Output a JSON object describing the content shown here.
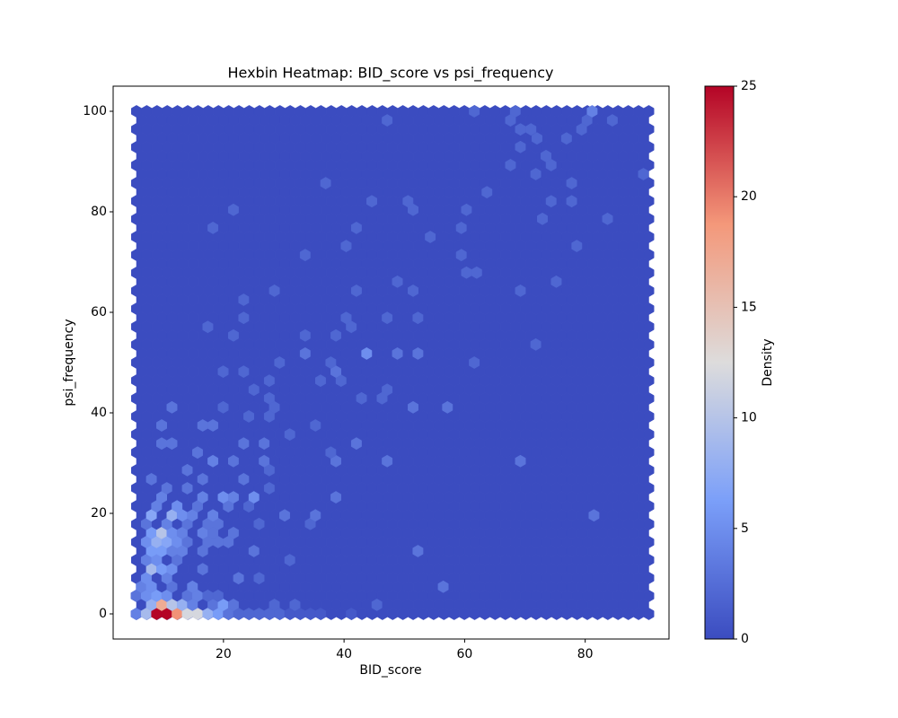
{
  "chart_data": {
    "type": "hexbin",
    "title": "Hexbin Heatmap: BID_score vs psi_frequency",
    "x_label": "BID_score",
    "y_label": "psi_frequency",
    "colorbar_label": "Density",
    "xlim": [
      1.7,
      93.9
    ],
    "ylim": [
      -5,
      105
    ],
    "xticks": [
      20,
      40,
      60,
      80
    ],
    "yticks": [
      0,
      20,
      40,
      60,
      80,
      100
    ],
    "clim": [
      0,
      25
    ],
    "cticks": [
      0,
      5,
      10,
      15,
      20,
      25
    ],
    "colormap": [
      "#3b4cc0",
      "#7b9ff9",
      "#dddcdc",
      "#f4987a",
      "#b40426"
    ],
    "x": [
      5.5,
      7.2,
      8.9,
      10.6,
      12.3,
      14.0,
      15.7,
      17.4,
      19.1,
      20.8,
      22.5,
      24.2,
      25.9,
      27.6,
      29.3,
      31.0,
      32.7,
      34.4,
      36.1,
      41.2,
      8.05,
      9.75,
      11.45,
      13.15,
      14.85,
      18.25,
      19.95,
      21.65,
      28.45,
      31.85,
      45.45,
      5.5,
      7.2,
      8.9,
      10.6,
      14.0,
      15.7,
      17.4,
      19.1,
      6.35,
      8.05,
      11.45,
      14.85,
      56.45,
      7.2,
      10.6,
      22.5,
      25.9,
      8.05,
      9.75,
      11.45,
      16.55,
      7.2,
      8.9,
      12.3,
      31.0,
      8.05,
      9.75,
      11.45,
      13.15,
      16.55,
      25.05,
      52.25,
      7.2,
      8.9,
      10.6,
      12.3,
      14.0,
      17.4,
      19.1,
      20.8,
      8.05,
      9.75,
      11.45,
      13.15,
      16.55,
      18.25,
      21.65,
      7.2,
      10.6,
      14.0,
      17.4,
      19.1,
      25.9,
      34.4,
      8.05,
      11.45,
      13.15,
      14.85,
      18.25,
      30.15,
      35.25,
      81.45,
      8.9,
      12.3,
      15.7,
      20.8,
      24.2,
      9.75,
      16.55,
      19.95,
      21.65,
      25.05,
      38.65,
      10.6,
      14.0,
      27.6,
      8.05,
      16.55,
      23.35,
      14.0,
      27.6,
      18.25,
      21.65,
      26.75,
      38.65,
      47.15,
      69.25,
      15.7,
      37.8,
      9.75,
      11.45,
      23.35,
      26.75,
      42.05,
      31.0,
      9.75,
      16.55,
      18.25,
      35.25,
      24.2,
      27.6,
      11.45,
      19.95,
      28.45,
      51.45,
      57.15,
      27.6,
      42.9,
      46.3,
      25.05,
      47.15,
      36.1,
      39.5,
      27.6,
      19.95,
      23.35,
      38.65,
      29.3,
      37.8,
      61.6,
      33.55,
      43.75,
      48.85,
      52.25,
      71.8,
      21.65,
      33.55,
      38.65,
      17.4,
      41.2,
      23.35,
      40.35,
      47.15,
      52.25,
      23.35,
      28.45,
      42.05,
      51.45,
      48.85,
      69.25,
      75.2,
      60.3,
      62.0,
      59.45,
      33.55,
      40.35,
      78.6,
      54.3,
      59.45,
      42.05,
      18.25,
      83.7,
      72.9,
      21.65,
      60.3,
      51.45,
      44.6,
      50.6,
      74.35,
      77.75,
      63.7,
      77.75,
      36.95,
      71.8,
      89.65,
      74.35,
      67.6,
      69.25,
      73.5,
      76.9,
      72.0,
      79.4,
      80.3,
      81.15,
      84.5,
      68.4,
      61.6,
      67.6,
      47.15,
      69.25,
      71.0
    ],
    "y": [
      0,
      0,
      0,
      0,
      0,
      0,
      0,
      0,
      0,
      0,
      0,
      0,
      0,
      0,
      0,
      0,
      0,
      0,
      0,
      0,
      1.8,
      1.8,
      1.8,
      1.8,
      1.8,
      1.8,
      1.8,
      1.8,
      1.8,
      1.8,
      1.8,
      3.6,
      3.6,
      3.6,
      3.6,
      3.6,
      3.6,
      3.6,
      3.6,
      5.4,
      5.4,
      5.4,
      5.4,
      5.4,
      7.1,
      7.1,
      7.1,
      7.1,
      8.9,
      8.9,
      8.9,
      8.9,
      10.7,
      10.7,
      10.7,
      10.7,
      12.5,
      12.5,
      12.5,
      12.5,
      12.5,
      12.5,
      12.5,
      14.3,
      14.3,
      14.3,
      14.3,
      14.3,
      14.3,
      14.3,
      14.3,
      16.1,
      16.1,
      16.1,
      16.1,
      16.1,
      16.1,
      16.1,
      17.9,
      17.9,
      17.9,
      17.9,
      17.9,
      17.9,
      17.9,
      19.6,
      19.6,
      19.6,
      19.6,
      19.6,
      19.6,
      19.6,
      19.6,
      21.4,
      21.4,
      21.4,
      21.4,
      21.4,
      23.2,
      23.2,
      23.2,
      23.2,
      23.2,
      23.2,
      25.0,
      25.0,
      25.0,
      26.8,
      26.8,
      26.8,
      28.6,
      28.6,
      30.4,
      30.4,
      30.4,
      30.4,
      30.4,
      30.4,
      32.1,
      32.1,
      33.9,
      33.9,
      33.9,
      33.9,
      33.9,
      35.7,
      37.5,
      37.5,
      37.5,
      37.5,
      39.3,
      39.3,
      41.1,
      41.1,
      41.1,
      41.1,
      41.1,
      42.9,
      42.9,
      42.9,
      44.6,
      44.6,
      46.4,
      46.4,
      46.4,
      48.2,
      48.2,
      48.2,
      50.0,
      50.0,
      50.0,
      51.8,
      51.8,
      51.8,
      51.8,
      53.6,
      55.4,
      55.4,
      55.4,
      57.1,
      57.1,
      58.9,
      58.9,
      58.9,
      58.9,
      62.5,
      64.3,
      64.3,
      64.3,
      66.1,
      64.3,
      66.1,
      67.9,
      67.9,
      71.4,
      71.4,
      73.2,
      73.2,
      75.0,
      76.8,
      76.8,
      76.8,
      78.6,
      78.6,
      80.4,
      80.4,
      80.4,
      82.1,
      82.1,
      82.1,
      82.1,
      83.9,
      85.7,
      85.7,
      87.5,
      87.5,
      89.3,
      89.3,
      92.9,
      91.1,
      94.6,
      94.6,
      96.4,
      98.2,
      100,
      98.2,
      100,
      100,
      98.2,
      98.2,
      96.4,
      96.4
    ],
    "values": [
      4,
      9,
      25,
      25,
      19,
      12,
      12,
      8,
      6,
      3,
      2,
      2,
      2,
      2,
      2,
      1,
      1,
      1,
      1,
      1,
      8,
      17,
      10,
      8,
      4,
      3,
      6,
      3,
      2,
      2,
      2,
      3,
      5,
      6,
      5,
      3,
      4,
      2,
      2,
      4,
      5,
      3,
      4,
      3,
      5,
      4,
      3,
      2,
      9,
      6,
      5,
      3,
      4,
      5,
      3,
      2,
      6,
      6,
      4,
      4,
      3,
      3,
      3,
      5,
      8,
      7,
      5,
      3,
      3,
      3,
      3,
      6,
      10,
      5,
      4,
      4,
      3,
      3,
      3,
      4,
      3,
      3,
      3,
      2,
      2,
      7,
      8,
      5,
      4,
      4,
      3,
      3,
      3,
      4,
      5,
      3,
      3,
      2,
      4,
      4,
      5,
      4,
      5,
      3,
      3,
      3,
      2,
      3,
      3,
      3,
      3,
      2,
      4,
      3,
      3,
      3,
      3,
      3,
      3,
      2,
      3,
      3,
      3,
      3,
      3,
      2,
      3,
      3,
      3,
      2,
      2,
      2,
      3,
      2,
      2,
      3,
      3,
      2,
      2,
      2,
      2,
      2,
      2,
      2,
      2,
      2,
      2,
      3,
      2,
      2,
      2,
      3,
      5,
      3,
      3,
      2,
      2,
      2,
      2,
      2,
      2,
      2,
      2,
      2,
      2,
      2,
      2,
      2,
      2,
      2,
      2,
      2,
      2,
      2,
      2,
      2,
      2,
      2,
      2,
      2,
      2,
      2,
      2,
      2,
      2,
      2,
      2,
      2,
      2,
      2,
      2,
      2,
      2,
      2,
      2,
      2,
      2,
      2,
      2,
      2,
      2,
      2,
      2,
      2,
      4,
      2,
      2,
      2,
      2,
      2,
      2,
      2
    ]
  }
}
